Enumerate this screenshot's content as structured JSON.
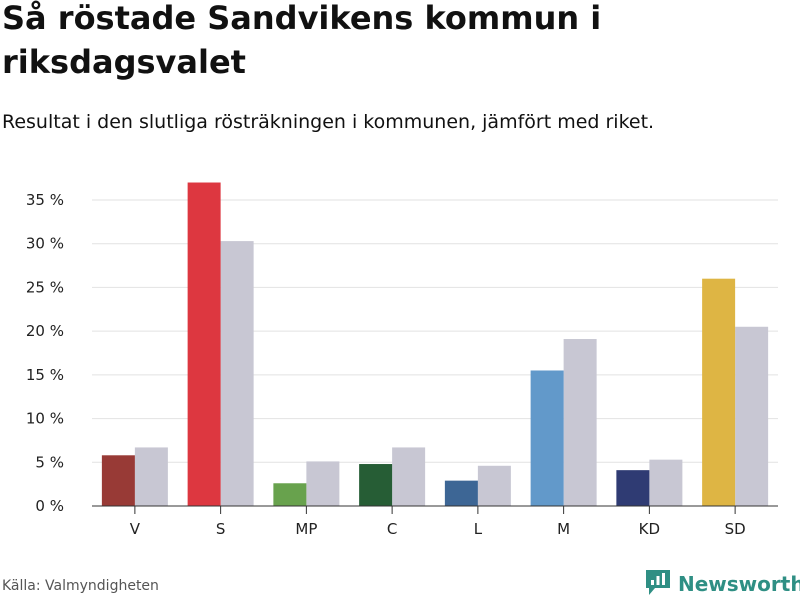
{
  "title": "Så röstade Sandvikens kommun i riksdagsvalet",
  "subtitle": "Resultat i den slutliga rösträkningen i kommunen, jämfört med riket.",
  "source": "Källa: Valmyndigheten",
  "brand": {
    "name": "Newsworthy",
    "icon": "newsworthy-logo-icon",
    "color": "#2f8f84"
  },
  "colors": {
    "national": "#c8c7d3",
    "grid": "#e2e2e2",
    "axis": "#333333",
    "text": "#222222"
  },
  "chart_data": {
    "type": "bar",
    "title": "Så röstade Sandvikens kommun i riksdagsvalet",
    "subtitle": "Resultat i den slutliga rösträkningen i kommunen, jämfört med riket.",
    "xlabel": "",
    "ylabel": "",
    "ylim": [
      0,
      35
    ],
    "yticks": [
      0,
      5,
      10,
      15,
      20,
      25,
      30,
      35
    ],
    "ytick_labels": [
      "0 %",
      "5 %",
      "10 %",
      "15 %",
      "20 %",
      "25 %",
      "30 %",
      "35 %"
    ],
    "grid": true,
    "categories": [
      "V",
      "S",
      "MP",
      "C",
      "L",
      "M",
      "KD",
      "SD"
    ],
    "series": [
      {
        "name": "Sandvikens kommun",
        "values": [
          5.8,
          37.0,
          2.6,
          4.8,
          2.9,
          15.5,
          4.1,
          26.0
        ],
        "colors": [
          "#983a36",
          "#dd3740",
          "#68a24d",
          "#265d35",
          "#3d6695",
          "#6299ca",
          "#2f3b73",
          "#deb544"
        ]
      },
      {
        "name": "Riket",
        "values": [
          6.7,
          30.3,
          5.1,
          6.7,
          4.6,
          19.1,
          5.3,
          20.5
        ],
        "color": "#c8c7d3"
      }
    ]
  }
}
